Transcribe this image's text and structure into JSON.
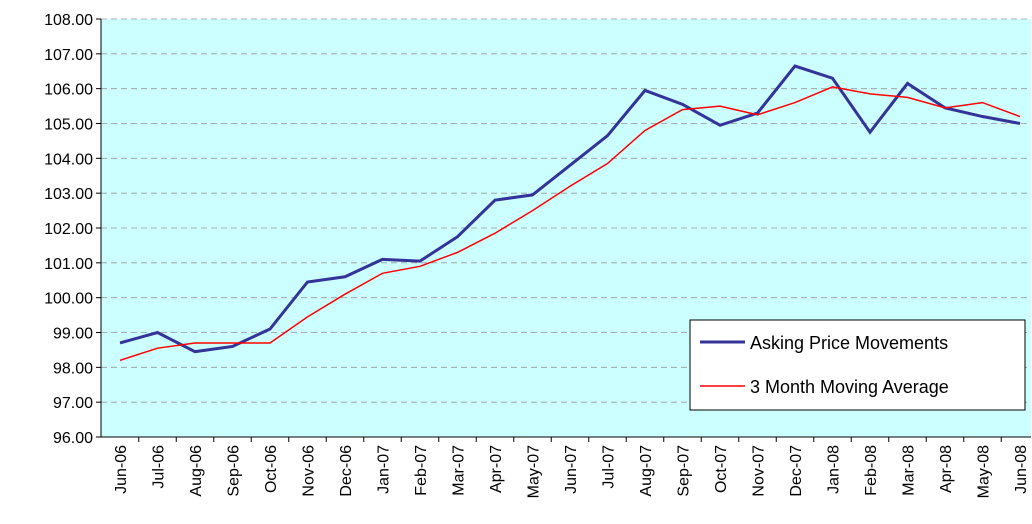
{
  "chart_data": {
    "type": "line",
    "categories": [
      "Jun-06",
      "Jul-06",
      "Aug-06",
      "Sep-06",
      "Oct-06",
      "Nov-06",
      "Dec-06",
      "Jan-07",
      "Feb-07",
      "Mar-07",
      "Apr-07",
      "May-07",
      "Jun-07",
      "Jul-07",
      "Aug-07",
      "Sep-07",
      "Oct-07",
      "Nov-07",
      "Dec-07",
      "Jan-08",
      "Feb-08",
      "Mar-08",
      "Apr-08",
      "May-08",
      "Jun-08"
    ],
    "series": [
      {
        "name": "Asking Price Movements",
        "color": "#333399",
        "values": [
          98.7,
          99.0,
          98.45,
          98.6,
          99.1,
          100.45,
          100.6,
          101.1,
          101.05,
          101.75,
          102.8,
          102.95,
          103.8,
          104.65,
          105.95,
          105.55,
          104.95,
          105.3,
          106.65,
          106.3,
          104.75,
          106.15,
          105.45,
          105.2,
          105.0
        ]
      },
      {
        "name": "3 Month Moving Average",
        "color": "#ff0000",
        "values": [
          98.2,
          98.55,
          98.7,
          98.7,
          98.7,
          99.45,
          100.1,
          100.7,
          100.9,
          101.3,
          101.85,
          102.5,
          103.2,
          103.85,
          104.8,
          105.4,
          105.5,
          105.25,
          105.6,
          106.05,
          105.85,
          105.75,
          105.45,
          105.6,
          105.2
        ]
      }
    ],
    "ylim": [
      96,
      108
    ],
    "yticks": [
      {
        "value": 96,
        "label": "96.00"
      },
      {
        "value": 97,
        "label": "97.00"
      },
      {
        "value": 98,
        "label": "98.00"
      },
      {
        "value": 99,
        "label": "99.00"
      },
      {
        "value": 100,
        "label": "100.00"
      },
      {
        "value": 101,
        "label": "101.00"
      },
      {
        "value": 102,
        "label": "102.00"
      },
      {
        "value": 103,
        "label": "103.00"
      },
      {
        "value": 104,
        "label": "104.00"
      },
      {
        "value": 105,
        "label": "105.00"
      },
      {
        "value": 106,
        "label": "106.00"
      },
      {
        "value": 107,
        "label": "107.00"
      },
      {
        "value": 108,
        "label": "108.00"
      }
    ],
    "grid": true,
    "legend": "lower-right",
    "background": "#ccffff"
  }
}
